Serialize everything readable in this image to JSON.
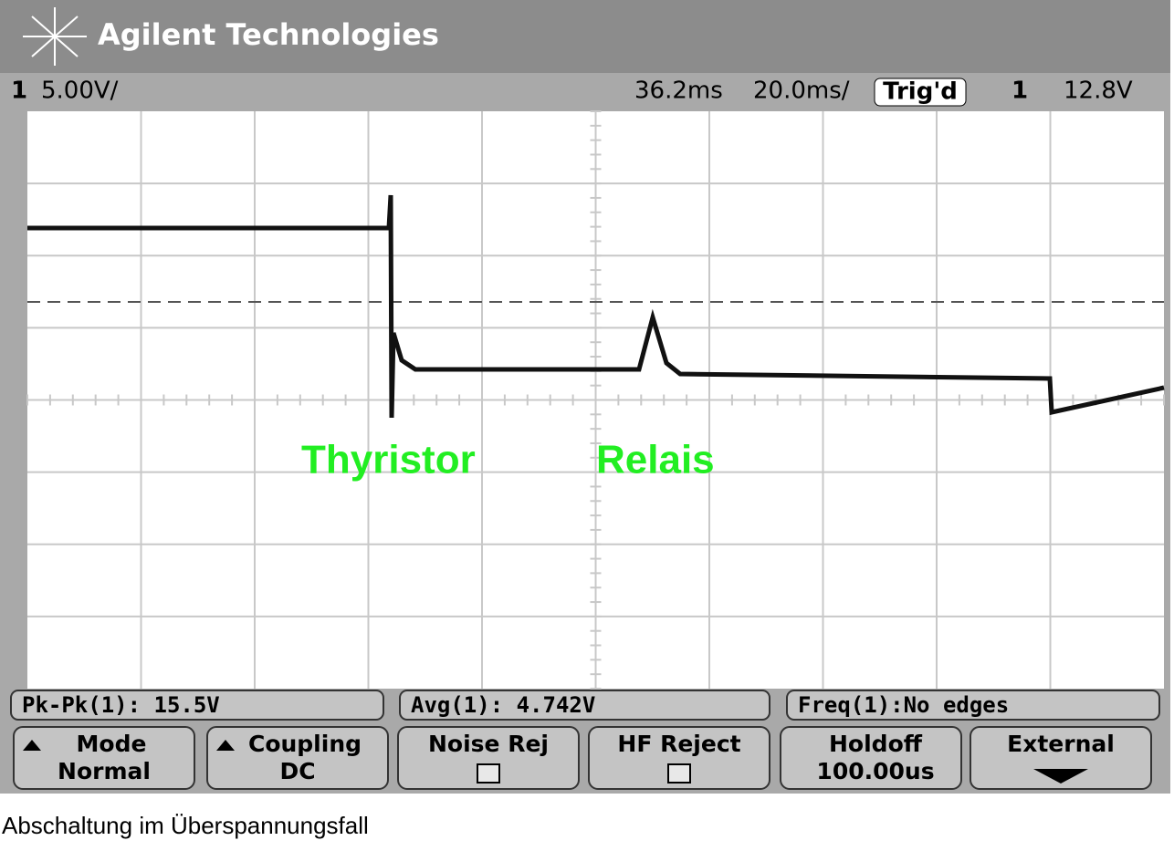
{
  "header": {
    "brand": "Agilent Technologies",
    "channel": "1",
    "volts_per_div": "5.00V/",
    "delay": "36.2ms",
    "time_per_div": "20.0ms/",
    "trigger_status": "Trig'd",
    "trigger_source": "1",
    "trigger_level": "12.8V"
  },
  "annotations": [
    "Thyristor",
    "Relais"
  ],
  "measurements": [
    "Pk-Pk(1): 15.5V",
    "Avg(1): 4.742V",
    "Freq(1):No edges"
  ],
  "softkeys": [
    {
      "label": "Mode",
      "value": "Normal"
    },
    {
      "label": "Coupling",
      "value": "DC"
    },
    {
      "label": "Noise Rej"
    },
    {
      "label": "HF Reject"
    },
    {
      "label": "Holdoff",
      "value": "100.00us"
    },
    {
      "label": "External"
    }
  ],
  "caption": "Abschaltung im Überspannungsfall"
}
